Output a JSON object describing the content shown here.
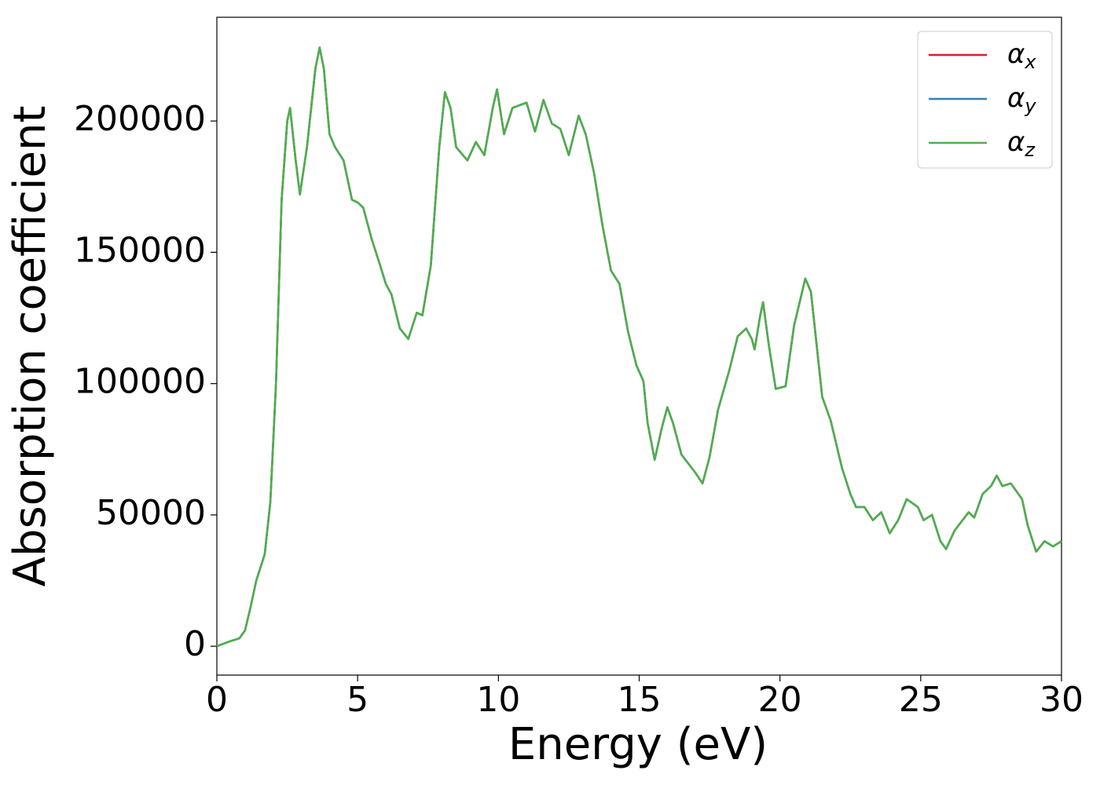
{
  "chart_data": {
    "type": "line",
    "xlabel": "Energy (eV)",
    "ylabel": "Absorption coefficient",
    "x": [
      0,
      0.5,
      0.8,
      1.0,
      1.2,
      1.4,
      1.7,
      1.9,
      2.1,
      2.3,
      2.5,
      2.6,
      2.8,
      2.95,
      3.2,
      3.5,
      3.65,
      3.8,
      4.0,
      4.2,
      4.5,
      4.8,
      5.0,
      5.2,
      5.5,
      5.8,
      6.0,
      6.2,
      6.5,
      6.8,
      7.1,
      7.3,
      7.6,
      7.9,
      8.1,
      8.3,
      8.5,
      8.9,
      9.2,
      9.5,
      9.8,
      9.95,
      10.2,
      10.5,
      11.0,
      11.3,
      11.6,
      11.9,
      12.2,
      12.5,
      12.85,
      13.1,
      13.4,
      13.7,
      14.0,
      14.3,
      14.6,
      14.9,
      15.15,
      15.3,
      15.55,
      15.8,
      16.0,
      16.2,
      16.5,
      17.0,
      17.25,
      17.5,
      17.8,
      18.2,
      18.5,
      18.8,
      19.0,
      19.1,
      19.3,
      19.4,
      19.6,
      19.85,
      20.2,
      20.5,
      20.9,
      21.1,
      21.5,
      21.8,
      22.2,
      22.5,
      22.7,
      23.0,
      23.3,
      23.6,
      23.9,
      24.2,
      24.5,
      24.9,
      25.1,
      25.4,
      25.7,
      25.9,
      26.2,
      26.7,
      26.9,
      27.2,
      27.5,
      27.7,
      27.9,
      28.2,
      28.6,
      28.8,
      29.1,
      29.4,
      29.7,
      30.0
    ],
    "series": [
      {
        "name": "α_x",
        "color": "#e41a1c",
        "values": [
          0,
          2000,
          3000,
          6000,
          15000,
          25000,
          35000,
          55000,
          100000,
          170000,
          200000,
          205000,
          185000,
          172000,
          190000,
          220000,
          228000,
          220000,
          195000,
          190000,
          185000,
          170000,
          169000,
          167000,
          155000,
          145000,
          138000,
          134000,
          121000,
          117000,
          127000,
          126000,
          145000,
          190000,
          211000,
          205000,
          190000,
          185000,
          192000,
          187000,
          205000,
          212000,
          195000,
          205000,
          207000,
          196000,
          208000,
          199000,
          197000,
          187000,
          202000,
          195000,
          180000,
          160000,
          143000,
          138000,
          120000,
          107000,
          101000,
          85000,
          71000,
          83000,
          91000,
          85000,
          73000,
          66000,
          62000,
          72000,
          90000,
          105000,
          118000,
          121000,
          117000,
          113000,
          126000,
          131000,
          115000,
          98000,
          99000,
          122000,
          140000,
          135000,
          95000,
          86000,
          68000,
          58000,
          53000,
          53000,
          48000,
          51000,
          43000,
          48000,
          56000,
          53000,
          48000,
          50000,
          40000,
          37000,
          44000,
          51000,
          49000,
          58000,
          61000,
          65000,
          61000,
          62000,
          56000,
          46000,
          36000,
          40000,
          38000,
          40000
        ]
      },
      {
        "name": "α_y",
        "color": "#377eb8",
        "values": [
          0,
          2000,
          3000,
          6000,
          15000,
          25000,
          35000,
          55000,
          100000,
          170000,
          200000,
          205000,
          185000,
          172000,
          190000,
          220000,
          228000,
          220000,
          195000,
          190000,
          185000,
          170000,
          169000,
          167000,
          155000,
          145000,
          138000,
          134000,
          121000,
          117000,
          127000,
          126000,
          145000,
          190000,
          211000,
          205000,
          190000,
          185000,
          192000,
          187000,
          205000,
          212000,
          195000,
          205000,
          207000,
          196000,
          208000,
          199000,
          197000,
          187000,
          202000,
          195000,
          180000,
          160000,
          143000,
          138000,
          120000,
          107000,
          101000,
          85000,
          71000,
          83000,
          91000,
          85000,
          73000,
          66000,
          62000,
          72000,
          90000,
          105000,
          118000,
          121000,
          117000,
          113000,
          126000,
          131000,
          115000,
          98000,
          99000,
          122000,
          140000,
          135000,
          95000,
          86000,
          68000,
          58000,
          53000,
          53000,
          48000,
          51000,
          43000,
          48000,
          56000,
          53000,
          48000,
          50000,
          40000,
          37000,
          44000,
          51000,
          49000,
          58000,
          61000,
          65000,
          61000,
          62000,
          56000,
          46000,
          36000,
          40000,
          38000,
          40000
        ]
      },
      {
        "name": "α_z",
        "color": "#4daf4a",
        "values": [
          0,
          2000,
          3000,
          6000,
          15000,
          25000,
          35000,
          55000,
          100000,
          170000,
          200000,
          205000,
          185000,
          172000,
          190000,
          220000,
          228000,
          220000,
          195000,
          190000,
          185000,
          170000,
          169000,
          167000,
          155000,
          145000,
          138000,
          134000,
          121000,
          117000,
          127000,
          126000,
          145000,
          190000,
          211000,
          205000,
          190000,
          185000,
          192000,
          187000,
          205000,
          212000,
          195000,
          205000,
          207000,
          196000,
          208000,
          199000,
          197000,
          187000,
          202000,
          195000,
          180000,
          160000,
          143000,
          138000,
          120000,
          107000,
          101000,
          85000,
          71000,
          83000,
          91000,
          85000,
          73000,
          66000,
          62000,
          72000,
          90000,
          105000,
          118000,
          121000,
          117000,
          113000,
          126000,
          131000,
          115000,
          98000,
          99000,
          122000,
          140000,
          135000,
          95000,
          86000,
          68000,
          58000,
          53000,
          53000,
          48000,
          51000,
          43000,
          48000,
          56000,
          53000,
          48000,
          50000,
          40000,
          37000,
          44000,
          51000,
          49000,
          58000,
          61000,
          65000,
          61000,
          62000,
          56000,
          46000,
          36000,
          40000,
          38000,
          40000
        ]
      }
    ],
    "xlim": [
      0,
      30
    ],
    "xticks": [
      0,
      5,
      10,
      15,
      20,
      25,
      30
    ],
    "ylim": [
      -11000,
      239500
    ],
    "yticks": [
      0,
      50000,
      100000,
      150000,
      200000
    ],
    "legend": "upper right",
    "grid": false
  }
}
